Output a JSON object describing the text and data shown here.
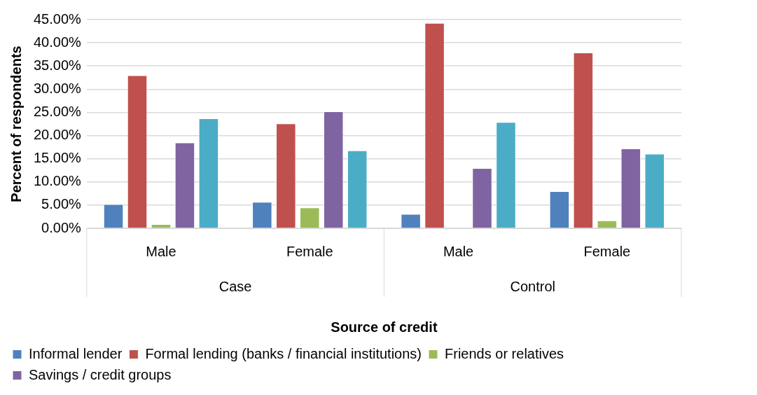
{
  "chart_data": {
    "type": "bar",
    "xlabel": "Source of credit",
    "ylabel": "Percent of respondents",
    "categories": [
      "Male",
      "Female",
      "Male",
      "Female"
    ],
    "annotations": [
      "Case",
      "Control"
    ],
    "series": [
      {
        "name": "Informal lender",
        "color": "#4f81bd",
        "values": [
          5.2,
          5.7,
          3.1,
          8.0
        ]
      },
      {
        "name": "Formal lending (banks / financial institutions)",
        "color": "#c0504d",
        "values": [
          33.0,
          22.6,
          44.3,
          37.9
        ]
      },
      {
        "name": "Friends or relatives",
        "color": "#9bbb59",
        "values": [
          0.9,
          4.5,
          0,
          1.7
        ]
      },
      {
        "name": "Savings / credit groups",
        "color": "#8064a2",
        "values": [
          18.5,
          25.2,
          13.0,
          17.2
        ]
      },
      {
        "color": "#4bacc6",
        "values": [
          23.7,
          16.8,
          22.9,
          16.1
        ]
      }
    ],
    "ylim": [
      0,
      45
    ],
    "yticks": [
      {
        "value": 0,
        "label": "0.00%"
      },
      {
        "value": 5,
        "label": "5.00%"
      },
      {
        "value": 10,
        "label": "10.00%"
      },
      {
        "value": 15,
        "label": "15.00%"
      },
      {
        "value": 20,
        "label": "20.00%"
      },
      {
        "value": 25,
        "label": "25.00%"
      },
      {
        "value": 30,
        "label": "30.00%"
      },
      {
        "value": 35,
        "label": "35.00%"
      },
      {
        "value": 40,
        "label": "40.00%"
      },
      {
        "value": 45,
        "label": "45.00%"
      }
    ],
    "grid": "y",
    "legend": "bottom"
  }
}
